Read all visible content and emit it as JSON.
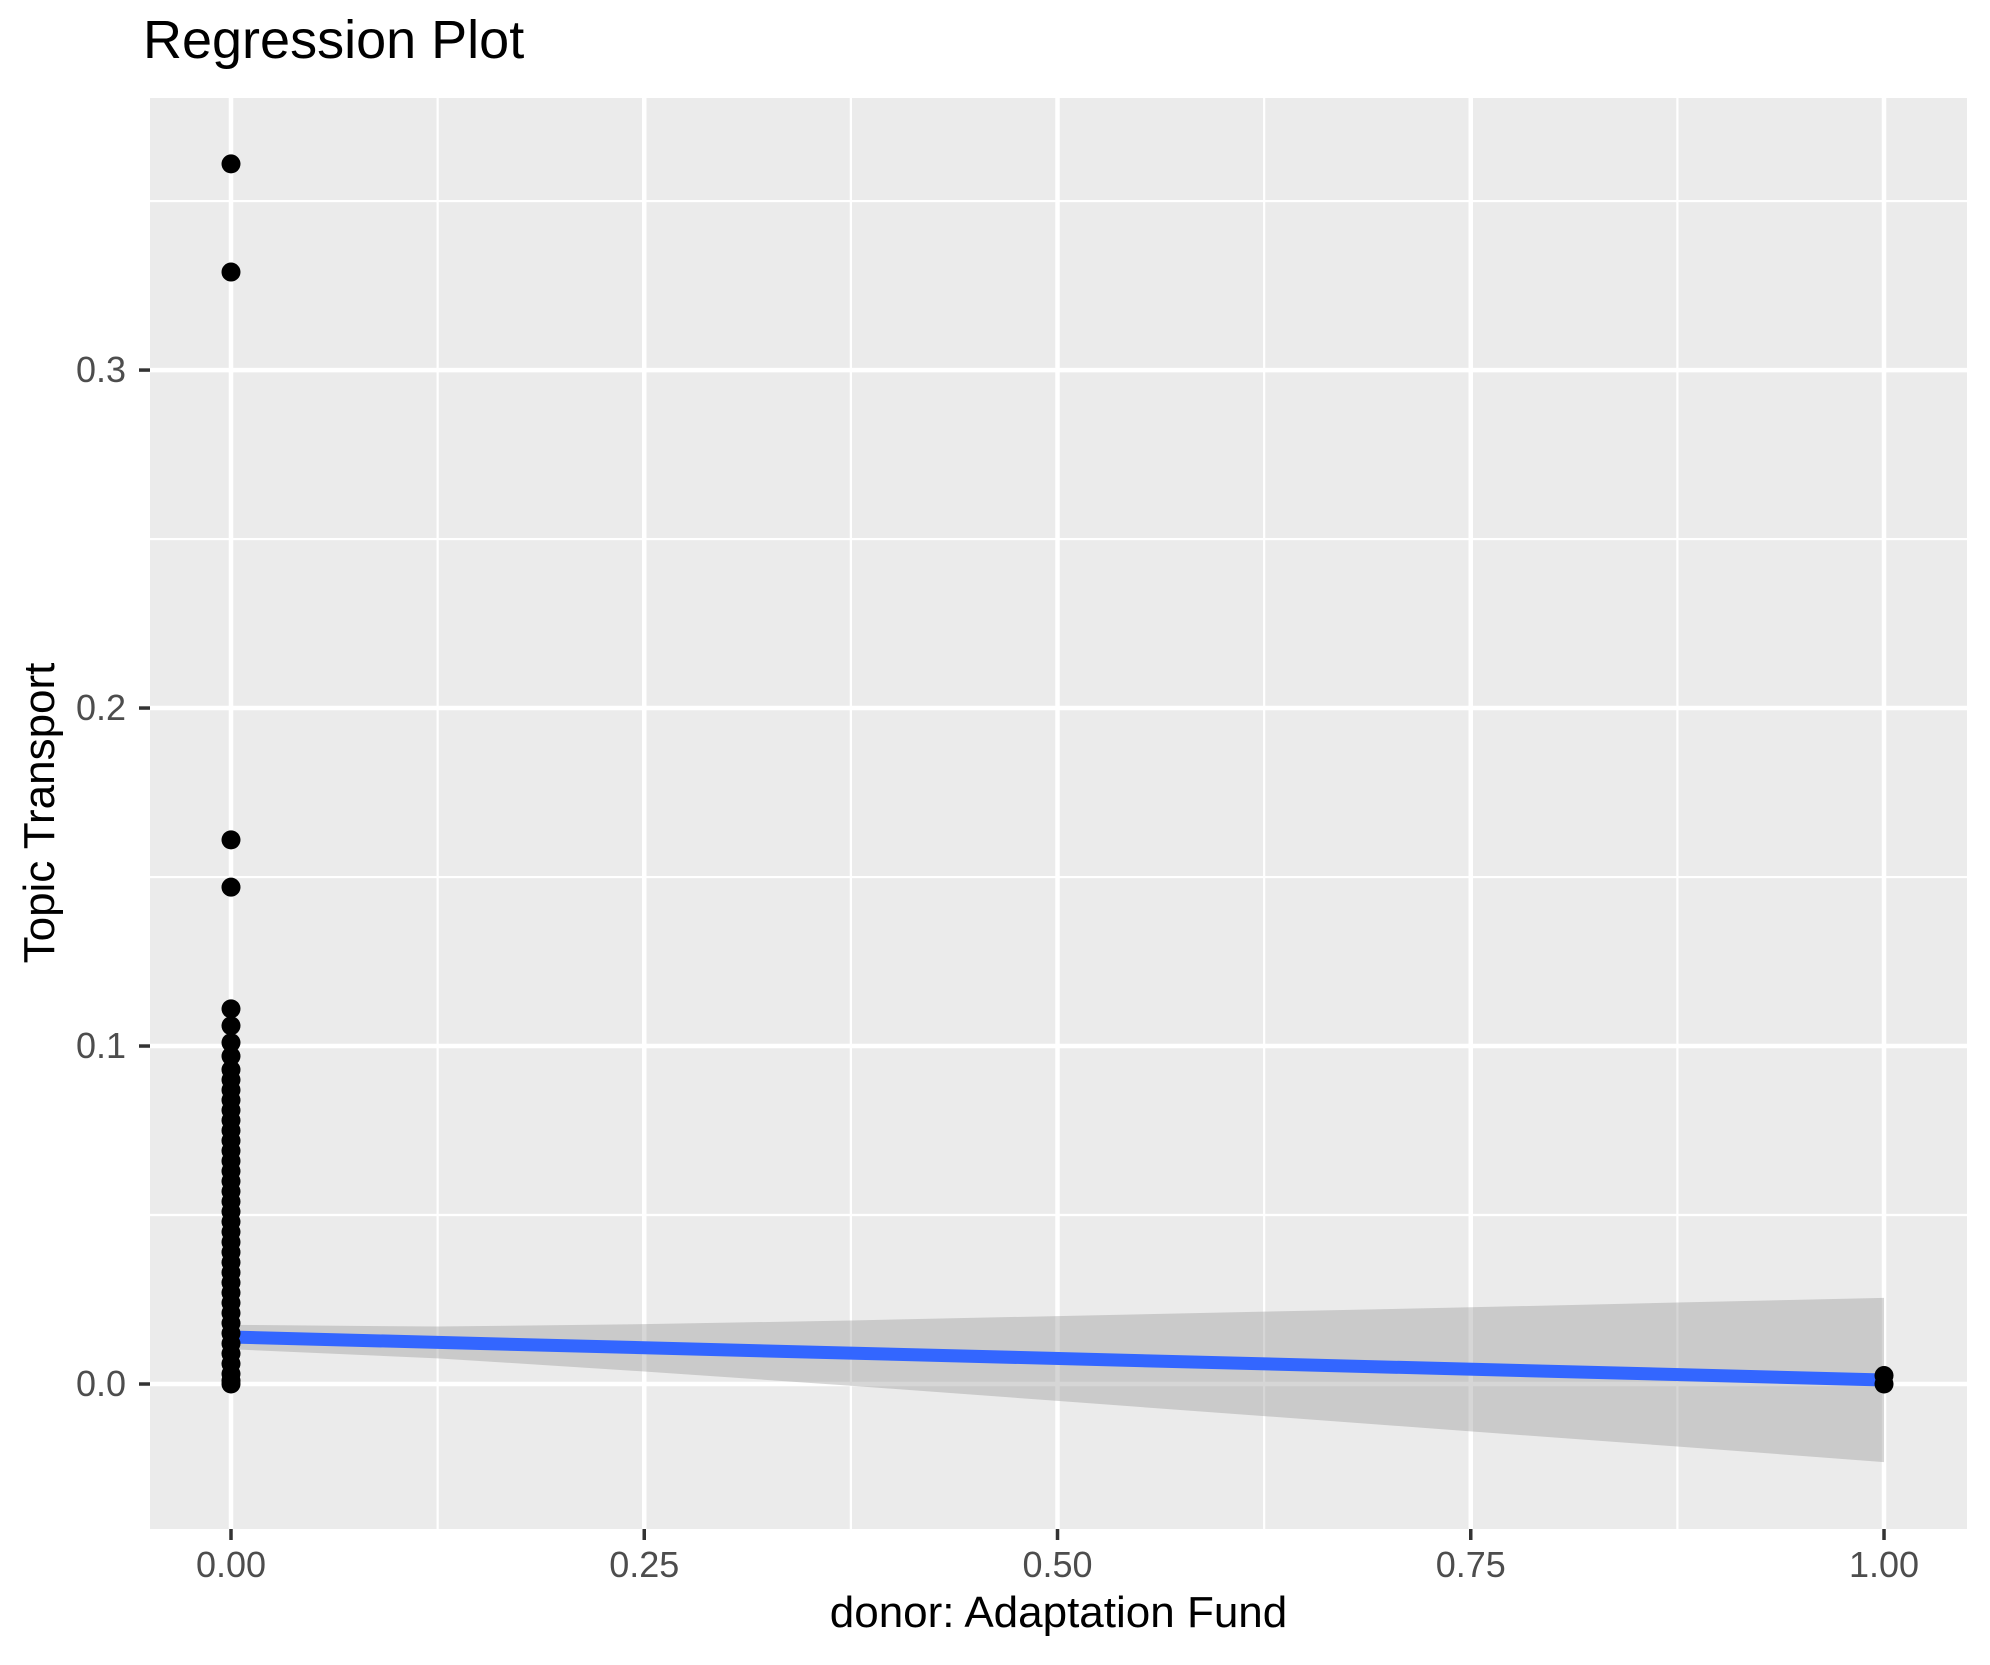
{
  "chart_data": {
    "type": "scatter",
    "title": "Regression Plot",
    "xlabel": "donor: Adaptation Fund",
    "ylabel": "Topic Transport",
    "x_ticks": {
      "values": [
        0.0,
        0.25,
        0.5,
        0.75,
        1.0
      ],
      "labels": [
        "0.00",
        "0.25",
        "0.50",
        "0.75",
        "1.00"
      ]
    },
    "y_ticks": {
      "values": [
        0.0,
        0.1,
        0.2,
        0.3
      ],
      "labels": [
        "0.0",
        "0.1",
        "0.2",
        "0.3"
      ]
    },
    "x_minor": [
      0.125,
      0.375,
      0.625,
      0.875
    ],
    "y_minor": [
      0.05,
      0.15,
      0.25,
      0.35
    ],
    "xlim": [
      -0.049,
      1.0502
    ],
    "ylim": [
      -0.0429,
      0.3805
    ],
    "grid": true,
    "legend": "none",
    "points": [
      [
        0,
        0.361
      ],
      [
        0,
        0.329
      ],
      [
        0,
        0.161
      ],
      [
        0,
        0.147
      ],
      [
        0,
        0.111
      ],
      [
        0,
        0.106
      ],
      [
        0,
        0.101
      ],
      [
        0,
        0.097
      ],
      [
        0,
        0.093
      ],
      [
        0,
        0.09
      ],
      [
        0,
        0.087
      ],
      [
        0,
        0.084
      ],
      [
        0,
        0.081
      ],
      [
        0,
        0.078
      ],
      [
        0,
        0.075
      ],
      [
        0,
        0.072
      ],
      [
        0,
        0.069
      ],
      [
        0,
        0.066
      ],
      [
        0,
        0.063
      ],
      [
        0,
        0.06
      ],
      [
        0,
        0.057
      ],
      [
        0,
        0.054
      ],
      [
        0,
        0.051
      ],
      [
        0,
        0.048
      ],
      [
        0,
        0.045
      ],
      [
        0,
        0.042
      ],
      [
        0,
        0.039
      ],
      [
        0,
        0.036
      ],
      [
        0,
        0.033
      ],
      [
        0,
        0.03
      ],
      [
        0,
        0.027
      ],
      [
        0,
        0.024
      ],
      [
        0,
        0.021
      ],
      [
        0,
        0.018
      ],
      [
        0,
        0.015
      ],
      [
        0,
        0.012
      ],
      [
        0,
        0.009
      ],
      [
        0,
        0.006
      ],
      [
        0,
        0.003
      ],
      [
        0,
        0.001
      ],
      [
        0,
        0.0
      ],
      [
        1,
        0.0025
      ],
      [
        1,
        0.0
      ]
    ],
    "regression_line": {
      "x": [
        0,
        1
      ],
      "y": [
        0.0139,
        0.0012
      ]
    },
    "confidence_ribbon": {
      "x": [
        0,
        0.125,
        0.25,
        0.375,
        0.5,
        0.625,
        0.75,
        0.875,
        1.0
      ],
      "top": [
        0.0175,
        0.017,
        0.0177,
        0.0188,
        0.0201,
        0.0214,
        0.0227,
        0.0241,
        0.0255
      ],
      "bottom": [
        0.0103,
        0.0076,
        0.0037,
        -0.0005,
        -0.005,
        -0.0095,
        -0.014,
        -0.0185,
        -0.0231
      ]
    },
    "style": {
      "background": "#FFFFFF",
      "panel_bg": "#EBEBEB",
      "grid_color": "#FFFFFF",
      "point_color": "#000000",
      "line_color": "#3366FF",
      "ribbon_color": "rgba(153,153,153,0.40)",
      "tick_label_color": "#4D4D4D",
      "tick_mark_color": "#333333",
      "text_color": "#000000"
    }
  }
}
